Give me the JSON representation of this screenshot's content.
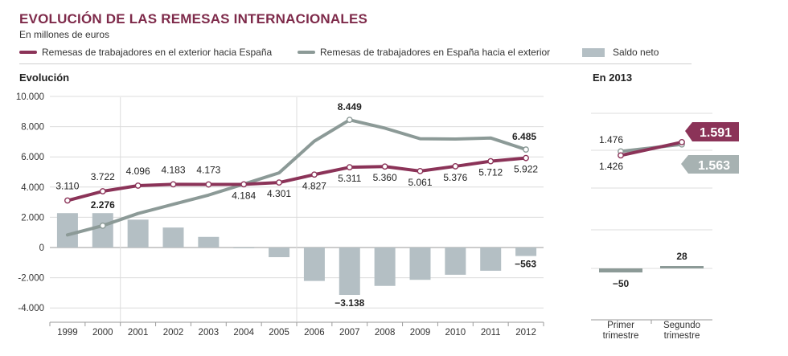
{
  "header": {
    "title": "EVOLUCIÓN DE LAS REMESAS INTERNACIONALES",
    "subtitle": "En millones de euros"
  },
  "legend": [
    {
      "label": "Remesas de trabajadores en el exterior hacia España",
      "color": "#8b3358",
      "kind": "line"
    },
    {
      "label": "Remesas de trabajadores en España hacia el exterior",
      "color": "#8c9a97",
      "kind": "line"
    },
    {
      "label": "Saldo neto",
      "color": "#b4bfc4",
      "kind": "bar"
    }
  ],
  "colors": {
    "inflow": "#8b3358",
    "outflow": "#8c9a97",
    "net": "#b4bfc4",
    "grid": "#dcdcdc",
    "axis": "#999999"
  },
  "chart_data": [
    {
      "type": "line",
      "title": "Evolución",
      "categories": [
        "1999",
        "2000",
        "2001",
        "2002",
        "2003",
        "2004",
        "2005",
        "2006",
        "2007",
        "2008",
        "2009",
        "2010",
        "2011",
        "2012"
      ],
      "ylim": [
        -5000,
        10000
      ],
      "yticks": [
        10000,
        8000,
        6000,
        4000,
        2000,
        0,
        -2000,
        -4000
      ],
      "ytick_labels": [
        "10.000",
        "8.000",
        "6.000",
        "4.000",
        "2.000",
        "0",
        "-2.000",
        "-4.000"
      ],
      "series": [
        {
          "name": "Remesas de trabajadores en el exterior hacia España",
          "kind": "line",
          "values": [
            3110,
            3722,
            4096,
            4183,
            4173,
            4184,
            4301,
            4827,
            5311,
            5360,
            5061,
            5376,
            5712,
            5922
          ],
          "labels": [
            "3.110",
            "3.722",
            "4.096",
            "4.183",
            "4.173",
            "4.184",
            "4.301",
            "4.827",
            "5.311",
            "5.360",
            "5.061",
            "5.376",
            "5.712",
            "5.922"
          ]
        },
        {
          "name": "Remesas de trabajadores en España hacia el exterior",
          "kind": "line",
          "values": [
            834,
            1446,
            2250,
            2860,
            3470,
            4200,
            4940,
            7040,
            8449,
            7900,
            7200,
            7180,
            7250,
            6485
          ],
          "labels": [
            "",
            "",
            "",
            "",
            "",
            "",
            "",
            "",
            "8.449",
            "",
            "",
            "",
            "",
            "6.485"
          ]
        },
        {
          "name": "Saldo neto",
          "kind": "bar",
          "values": [
            2276,
            2276,
            1846,
            1323,
            703,
            -16,
            -639,
            -2213,
            -3138,
            -2540,
            -2139,
            -1804,
            -1538,
            -563
          ],
          "labels": [
            "",
            "2.276",
            "",
            "",
            "",
            "",
            "",
            "",
            "−3.138",
            "",
            "",
            "",
            "",
            "−563"
          ]
        }
      ]
    },
    {
      "type": "line",
      "title": "En 2013",
      "categories": [
        "Primer trimestre",
        "Segundo trimestre"
      ],
      "series": [
        {
          "name": "Remesas de trabajadores en el exterior hacia España",
          "values": [
            1426,
            1591
          ],
          "labels": [
            "1.426",
            "1.591"
          ]
        },
        {
          "name": "Remesas de trabajadores en España hacia el exterior",
          "values": [
            1476,
            1563
          ],
          "labels": [
            "1.476",
            "1.563"
          ]
        },
        {
          "name": "Saldo neto",
          "values": [
            -50,
            28
          ],
          "labels": [
            "−50",
            "28"
          ]
        }
      ]
    }
  ]
}
